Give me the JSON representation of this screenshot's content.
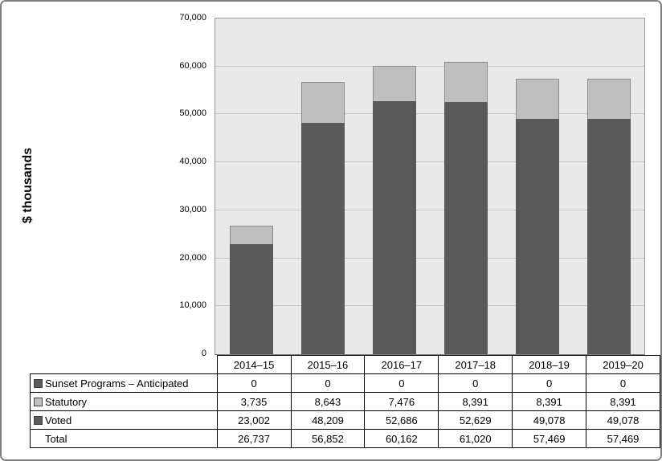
{
  "ylabel": "$ thousands",
  "colors": {
    "dark_series": "#595959",
    "light_series": "#bfbfbf",
    "plot_background": "#e9e9e9",
    "gridline": "#c6c6c6"
  },
  "chart_data": {
    "type": "bar",
    "stacked": true,
    "title": "",
    "xlabel": "",
    "ylabel": "$ thousands",
    "categories": [
      "2014–15",
      "2015–16",
      "2016–17",
      "2017–18",
      "2018–19",
      "2019–20"
    ],
    "series": [
      {
        "name": "Sunset Programs – Anticipated",
        "values": [
          0,
          0,
          0,
          0,
          0,
          0
        ],
        "color": "#595959"
      },
      {
        "name": "Statutory",
        "values": [
          3735,
          8643,
          7476,
          8391,
          8391,
          8391
        ],
        "color": "#bfbfbf"
      },
      {
        "name": "Voted",
        "values": [
          23002,
          48209,
          52686,
          52629,
          49078,
          49078
        ],
        "color": "#595959"
      }
    ],
    "totals": [
      26737,
      56852,
      60162,
      61020,
      57469,
      57469
    ],
    "ylim": [
      0,
      70000
    ],
    "ytick_step": 10000,
    "ytick_labels": [
      "0",
      "10,000",
      "20,000",
      "30,000",
      "40,000",
      "50,000",
      "60,000",
      "70,000"
    ],
    "grid": true,
    "legend_position": "table-left"
  },
  "table": {
    "rows": [
      {
        "label": "Sunset Programs – Anticipated",
        "marker_color": "#595959",
        "values": [
          "0",
          "0",
          "0",
          "0",
          "0",
          "0"
        ]
      },
      {
        "label": "Statutory",
        "marker_color": "#bfbfbf",
        "values": [
          "3,735",
          "8,643",
          "7,476",
          "8,391",
          "8,391",
          "8,391"
        ]
      },
      {
        "label": "Voted",
        "marker_color": "#595959",
        "values": [
          "23,002",
          "48,209",
          "52,686",
          "52,629",
          "49,078",
          "49,078"
        ]
      },
      {
        "label": "Total",
        "marker_color": null,
        "values": [
          "26,737",
          "56,852",
          "60,162",
          "61,020",
          "57,469",
          "57,469"
        ]
      }
    ]
  }
}
